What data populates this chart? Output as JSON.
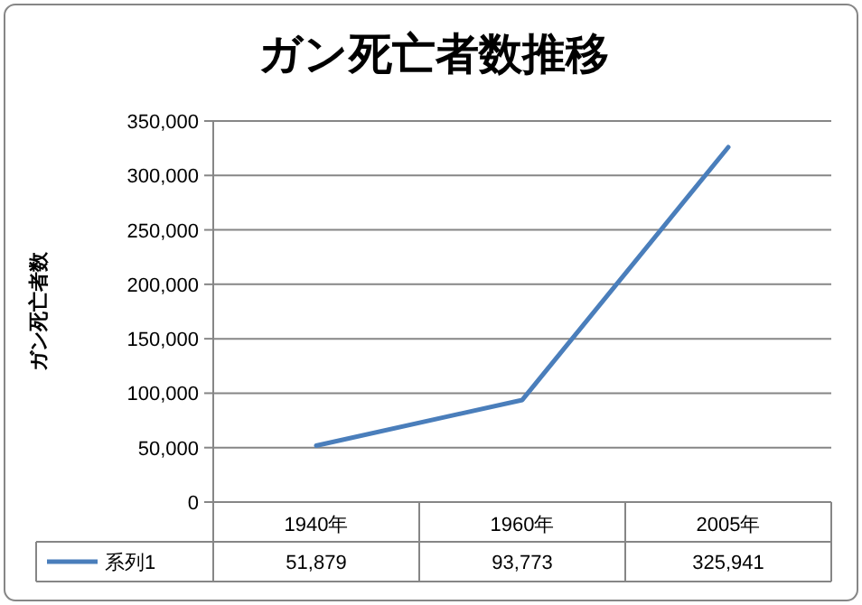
{
  "chart_data": {
    "type": "line",
    "title": "ガン死亡者数推移",
    "ylabel": "ガン死亡者数",
    "categories": [
      "1940年",
      "1960年",
      "2005年"
    ],
    "series": [
      {
        "name": "系列1",
        "color": "#4a7ebb",
        "values": [
          51879,
          93773,
          325941
        ],
        "value_labels": [
          "51,879",
          "93,773",
          "325,941"
        ]
      }
    ],
    "ylim": [
      0,
      350000
    ],
    "yticks": [
      {
        "value": 0,
        "label": "0"
      },
      {
        "value": 50000,
        "label": "50,000"
      },
      {
        "value": 100000,
        "label": "100,000"
      },
      {
        "value": 150000,
        "label": "150,000"
      },
      {
        "value": 200000,
        "label": "200,000"
      },
      {
        "value": 250000,
        "label": "250,000"
      },
      {
        "value": 300000,
        "label": "300,000"
      },
      {
        "value": 350000,
        "label": "350,000"
      }
    ],
    "grid": "y",
    "legend": "bottom",
    "marker": "none",
    "line_style": "solid"
  }
}
